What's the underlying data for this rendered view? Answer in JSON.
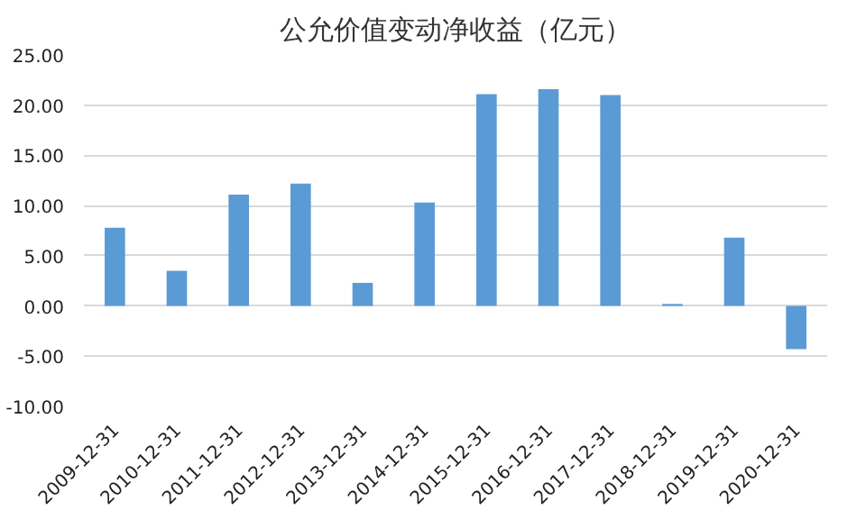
{
  "chart_data": {
    "type": "bar",
    "title": "公允价值变动净收益（亿元）",
    "categories": [
      "2009-12-31",
      "2010-12-31",
      "2011-12-31",
      "2012-12-31",
      "2013-12-31",
      "2014-12-31",
      "2015-12-31",
      "2016-12-31",
      "2017-12-31",
      "2018-12-31",
      "2019-12-31",
      "2020-12-31"
    ],
    "series": [
      {
        "color": "#5b9bd5",
        "values": [
          7.8,
          3.5,
          11.1,
          12.2,
          2.3,
          10.3,
          21.1,
          21.6,
          21.0,
          0.2,
          6.8,
          -4.3
        ]
      }
    ],
    "ylim": [
      -10,
      25
    ],
    "yticks": [
      {
        "value": -10,
        "label": "-10.00"
      },
      {
        "value": -5,
        "label": "-5.00"
      },
      {
        "value": 0,
        "label": "0.00"
      },
      {
        "value": 5,
        "label": "5.00"
      },
      {
        "value": 10,
        "label": "10.00"
      },
      {
        "value": 15,
        "label": "15.00"
      },
      {
        "value": 20,
        "label": "20.00"
      },
      {
        "value": 25,
        "label": "25.00"
      }
    ],
    "grid": "y"
  }
}
